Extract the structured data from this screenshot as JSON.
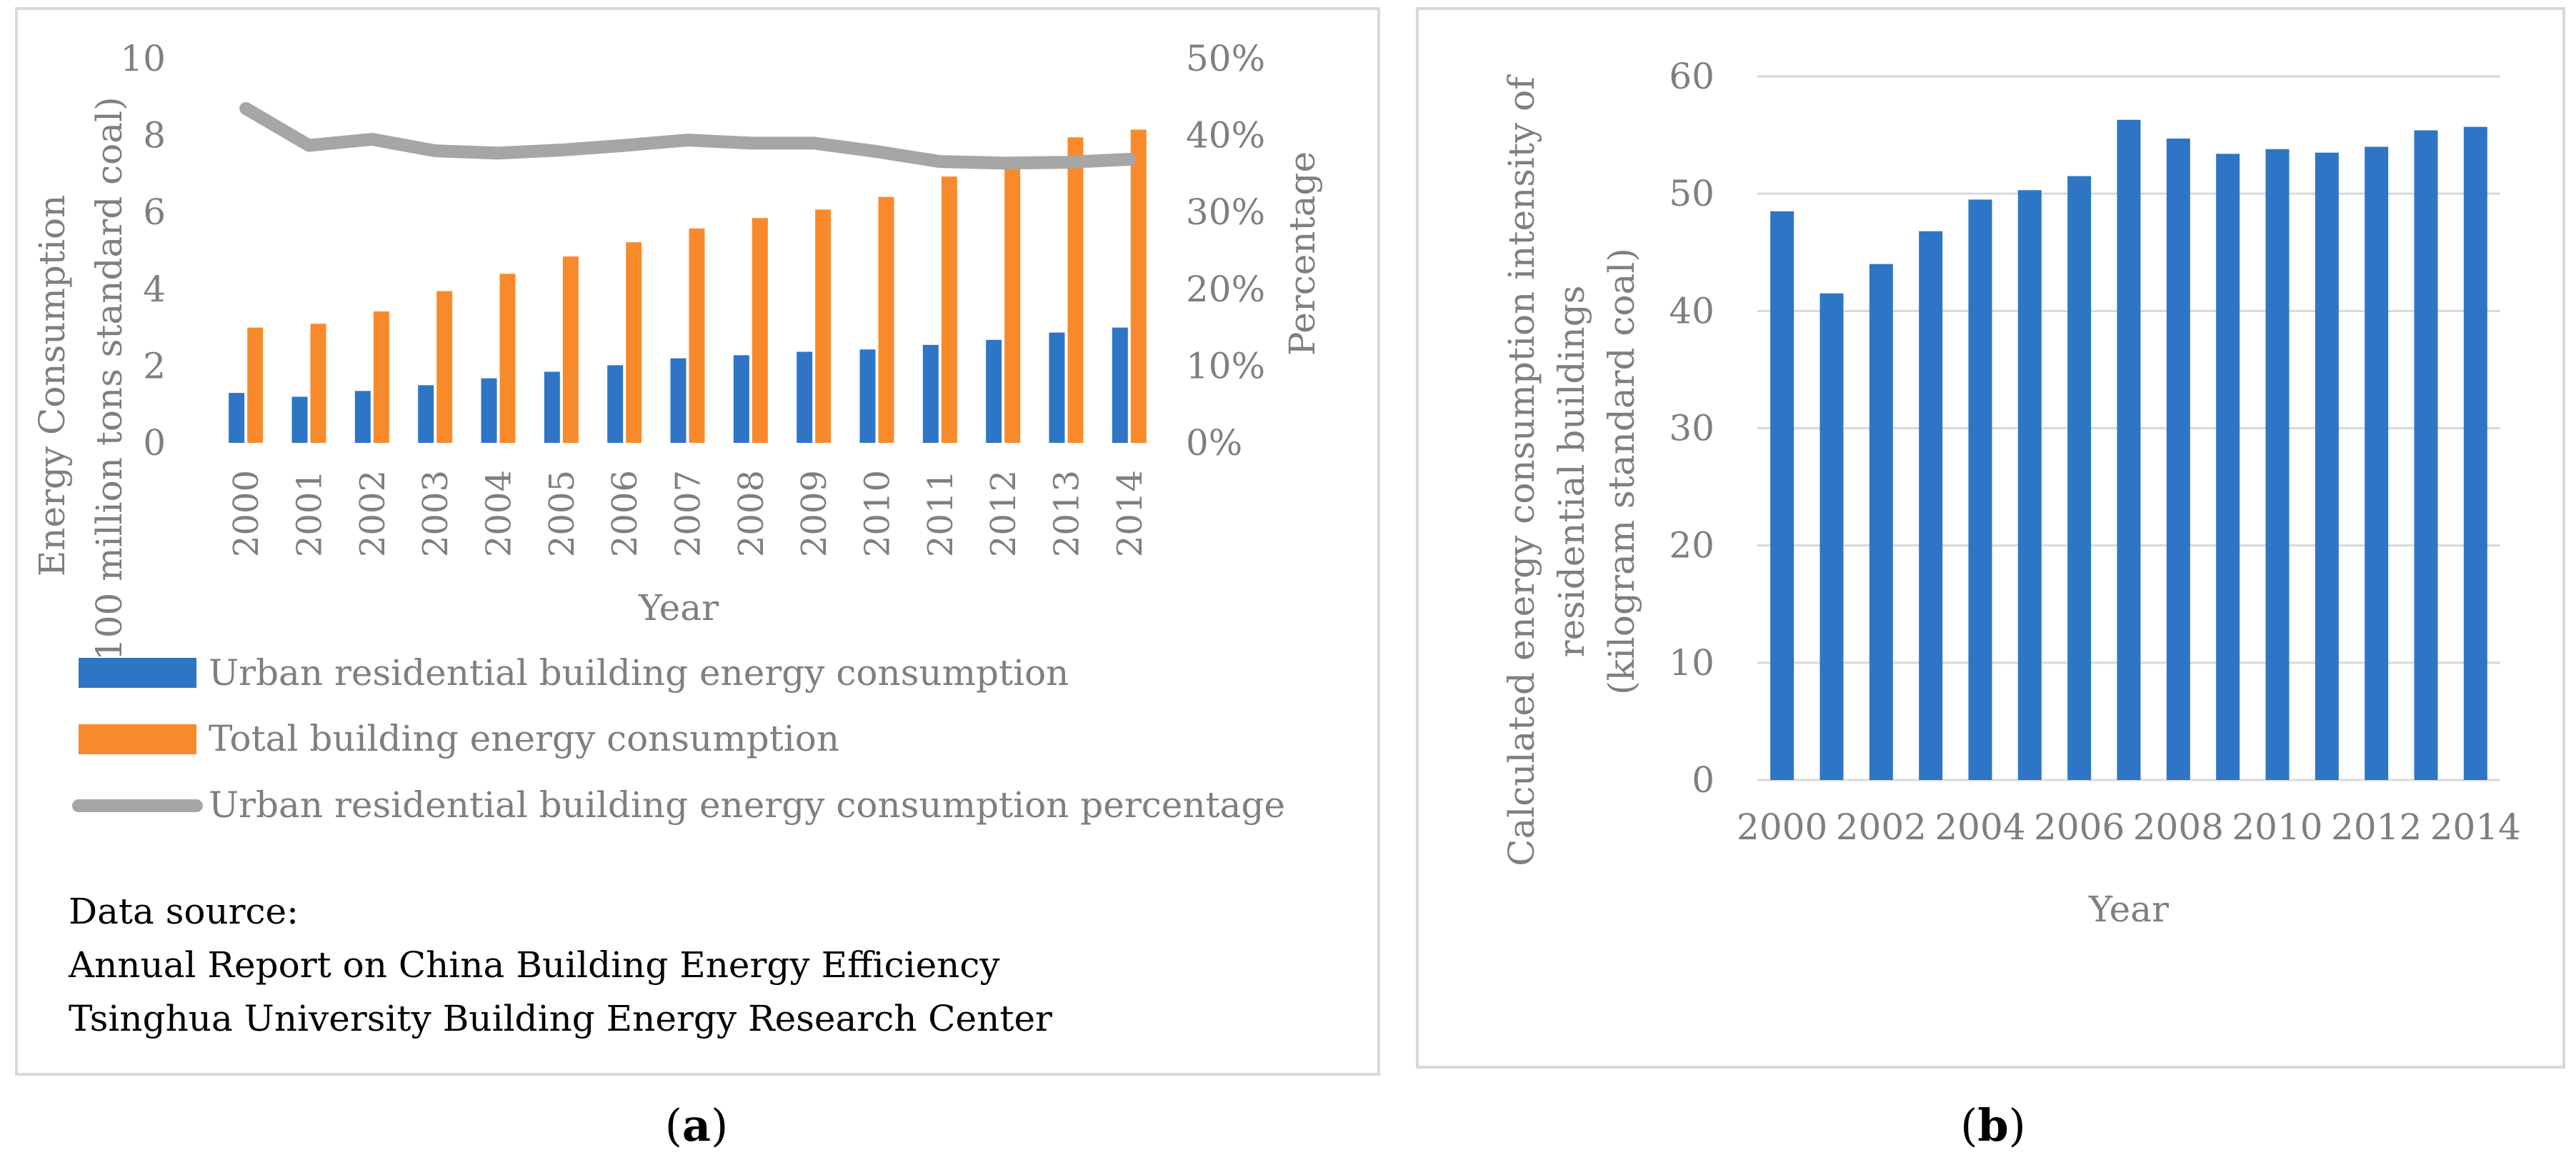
{
  "chart_data": [
    {
      "type": "bar",
      "panel_caption": "a",
      "title": "",
      "categories": [
        "2000",
        "2001",
        "2002",
        "2003",
        "2004",
        "2005",
        "2006",
        "2007",
        "2008",
        "2009",
        "2010",
        "2011",
        "2012",
        "2013",
        "2014"
      ],
      "series": [
        {
          "name": "Urban residential building energy consumption",
          "axis": "left",
          "kind": "bar",
          "color": "#2e75c6",
          "values": [
            1.3,
            1.2,
            1.35,
            1.5,
            1.68,
            1.85,
            2.02,
            2.2,
            2.28,
            2.37,
            2.43,
            2.55,
            2.68,
            2.87,
            3.0
          ]
        },
        {
          "name": "Total building energy consumption",
          "axis": "left",
          "kind": "bar",
          "color": "#f98a2b",
          "values": [
            3.0,
            3.1,
            3.42,
            3.95,
            4.4,
            4.85,
            5.22,
            5.58,
            5.85,
            6.07,
            6.4,
            6.93,
            7.3,
            7.95,
            8.15
          ]
        },
        {
          "name": "Urban residential building energy consumption percentage",
          "axis": "right",
          "kind": "line",
          "color": "#a6a6a6",
          "values": [
            43.5,
            38.7,
            39.5,
            38.0,
            37.7,
            38.1,
            38.7,
            39.4,
            39.0,
            39.0,
            37.9,
            36.6,
            36.4,
            36.5,
            36.9
          ]
        }
      ],
      "ylabel_lines": [
        "Energy Consumption",
        "(100 million tons standard coal)"
      ],
      "y2label": "Percentage",
      "xlabel": "Year",
      "ylim": [
        0,
        10
      ],
      "yticks": [
        "0",
        "2",
        "4",
        "6",
        "8",
        "10"
      ],
      "y2lim": [
        0,
        50
      ],
      "y2ticks": [
        "0%",
        "10%",
        "20%",
        "30%",
        "40%",
        "50%"
      ],
      "legend_position": "bottom",
      "note_lines": [
        "Data source:",
        "Annual Report on China Building Energy Efficiency",
        "Tsinghua University Building Energy Research Center"
      ]
    },
    {
      "type": "bar",
      "panel_caption": "b",
      "title": "",
      "categories": [
        "2000",
        "2001",
        "2002",
        "2003",
        "2004",
        "2005",
        "2006",
        "2007",
        "2008",
        "2009",
        "2010",
        "2011",
        "2012",
        "2013",
        "2014"
      ],
      "tick_labels": [
        "2000",
        "2002",
        "2004",
        "2006",
        "2008",
        "2010",
        "2012",
        "2014"
      ],
      "series": [
        {
          "name": "Calculated energy consumption intensity of residential buildings",
          "color": "#2e75c6",
          "values": [
            48.5,
            41.5,
            44.0,
            46.8,
            49.5,
            50.3,
            51.5,
            56.3,
            54.7,
            53.4,
            53.8,
            53.5,
            54.0,
            55.4,
            55.7
          ]
        }
      ],
      "ylabel_lines": [
        "Calculated energy consumption intensity of",
        "residential buildings",
        "(kilogram standard coal)"
      ],
      "xlabel": "Year",
      "ylim": [
        0,
        60
      ],
      "yticks": [
        "0",
        "10",
        "20",
        "30",
        "40",
        "50",
        "60"
      ],
      "gridlines": true
    }
  ],
  "captions": {
    "a_open": "(",
    "a_letter": "a",
    "a_close": ")",
    "b_open": "(",
    "b_letter": "b",
    "b_close": ")"
  }
}
